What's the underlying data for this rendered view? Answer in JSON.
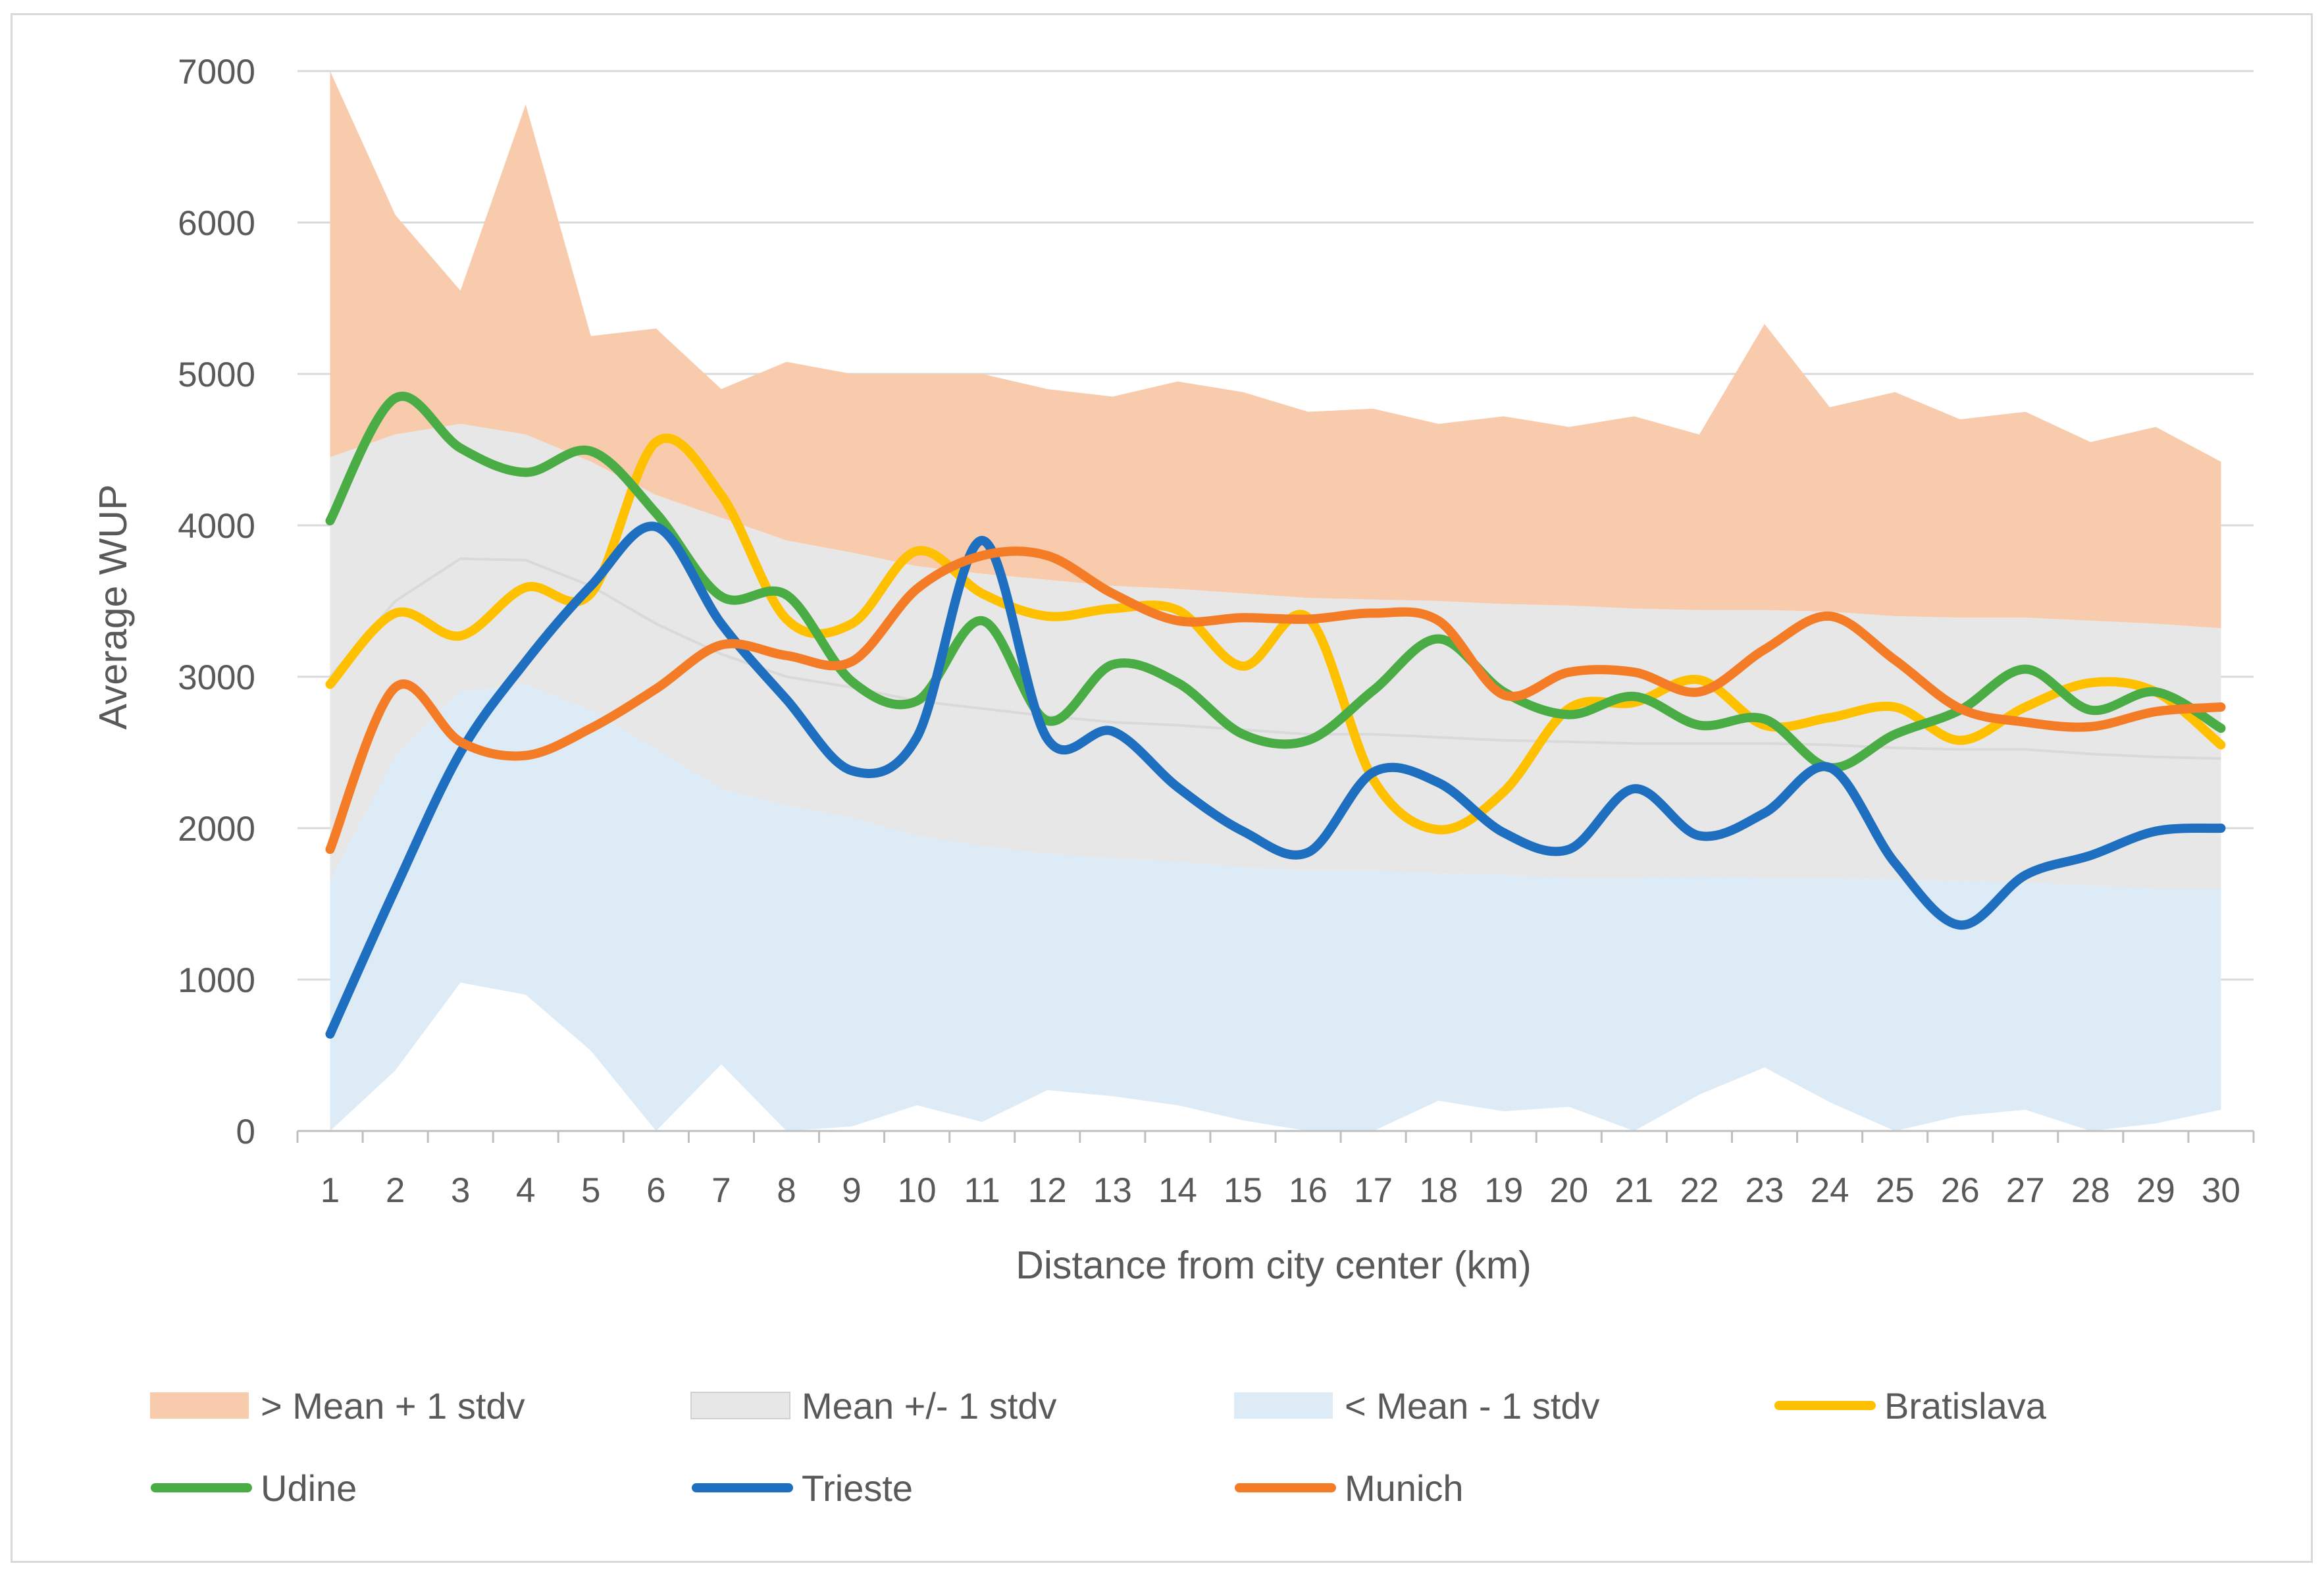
{
  "chart_data": {
    "type": "line",
    "title": "",
    "xlabel": "Distance from city center (km)",
    "ylabel": "Average WUP",
    "ylim": [
      0,
      7000
    ],
    "yticks": [
      0,
      1000,
      2000,
      3000,
      4000,
      5000,
      6000,
      7000
    ],
    "grid": true,
    "legend_position": "bottom",
    "categories": [
      "1",
      "2",
      "3",
      "4",
      "5",
      "6",
      "7",
      "8",
      "9",
      "10",
      "11",
      "12",
      "13",
      "14",
      "15",
      "16",
      "17",
      "18",
      "19",
      "20",
      "21",
      "22",
      "23",
      "24",
      "25",
      "26",
      "27",
      "28",
      "29",
      "30"
    ],
    "bands": [
      {
        "name": "> Mean + 1 stdv",
        "color": "#f8cbad",
        "lower": [
          4450,
          4600,
          4670,
          4600,
          4420,
          4200,
          4050,
          3900,
          3820,
          3730,
          3680,
          3640,
          3600,
          3580,
          3550,
          3520,
          3510,
          3500,
          3480,
          3470,
          3450,
          3440,
          3440,
          3430,
          3400,
          3390,
          3390,
          3370,
          3350,
          3320
        ],
        "upper": [
          7000,
          6050,
          5550,
          6780,
          5250,
          5300,
          4900,
          5080,
          5000,
          5000,
          5000,
          4900,
          4850,
          4950,
          4880,
          4750,
          4770,
          4670,
          4720,
          4650,
          4720,
          4600,
          5330,
          4780,
          4880,
          4700,
          4750,
          4550,
          4650,
          4420
        ]
      },
      {
        "name": "Mean +/- 1 stdv",
        "color": "#e7e7e7",
        "lower": [
          1650,
          2480,
          2900,
          2950,
          2780,
          2520,
          2260,
          2150,
          2070,
          1950,
          1880,
          1830,
          1800,
          1780,
          1740,
          1720,
          1720,
          1700,
          1690,
          1670,
          1670,
          1680,
          1670,
          1670,
          1660,
          1650,
          1640,
          1620,
          1600,
          1600
        ],
        "upper": [
          4450,
          4600,
          4670,
          4600,
          4420,
          4200,
          4050,
          3900,
          3820,
          3730,
          3680,
          3640,
          3600,
          3580,
          3550,
          3520,
          3510,
          3500,
          3480,
          3470,
          3450,
          3440,
          3440,
          3430,
          3400,
          3390,
          3390,
          3370,
          3350,
          3320
        ]
      },
      {
        "name": "< Mean - 1 stdv",
        "color": "#ddebf7",
        "lower": [
          0,
          400,
          980,
          900,
          530,
          0,
          440,
          0,
          30,
          170,
          60,
          270,
          230,
          170,
          70,
          0,
          0,
          200,
          130,
          160,
          0,
          240,
          420,
          190,
          0,
          100,
          140,
          0,
          50,
          140
        ],
        "upper": [
          1650,
          2480,
          2900,
          2950,
          2780,
          2520,
          2260,
          2150,
          2070,
          1950,
          1880,
          1830,
          1800,
          1780,
          1740,
          1720,
          1720,
          1700,
          1690,
          1670,
          1670,
          1680,
          1670,
          1670,
          1660,
          1650,
          1640,
          1620,
          1600,
          1600
        ]
      }
    ],
    "mean_line": {
      "color": "#d9d9d9",
      "values": [
        3000,
        3500,
        3780,
        3770,
        3600,
        3350,
        3150,
        3000,
        2930,
        2840,
        2790,
        2740,
        2700,
        2680,
        2650,
        2620,
        2620,
        2600,
        2580,
        2570,
        2560,
        2560,
        2560,
        2550,
        2530,
        2520,
        2520,
        2490,
        2470,
        2460
      ]
    },
    "series": [
      {
        "name": "Bratislava",
        "color": "#ffc000",
        "values": [
          2950,
          3420,
          3270,
          3590,
          3550,
          4550,
          4200,
          3380,
          3350,
          3830,
          3550,
          3400,
          3450,
          3440,
          3070,
          3390,
          2320,
          1990,
          2240,
          2790,
          2830,
          2980,
          2680,
          2730,
          2800,
          2580,
          2800,
          2960,
          2900,
          2550
        ]
      },
      {
        "name": "Udine",
        "color": "#4aac44",
        "values": [
          4030,
          4840,
          4510,
          4350,
          4490,
          4080,
          3530,
          3540,
          2970,
          2840,
          3370,
          2710,
          3080,
          2960,
          2620,
          2580,
          2910,
          3250,
          2900,
          2750,
          2870,
          2680,
          2720,
          2400,
          2620,
          2780,
          3050,
          2780,
          2900,
          2660
        ]
      },
      {
        "name": "Trieste",
        "color": "#1f6fc1",
        "values": [
          640,
          1600,
          2500,
          3100,
          3600,
          3990,
          3350,
          2850,
          2380,
          2600,
          3900,
          2590,
          2640,
          2270,
          1980,
          1840,
          2370,
          2300,
          1970,
          1860,
          2260,
          1950,
          2100,
          2400,
          1770,
          1360,
          1690,
          1820,
          1980,
          2000
        ]
      },
      {
        "name": "Munich",
        "color": "#f57c27",
        "values": [
          1860,
          2930,
          2570,
          2480,
          2660,
          2920,
          3210,
          3140,
          3100,
          3580,
          3800,
          3800,
          3550,
          3370,
          3390,
          3380,
          3420,
          3370,
          2880,
          3030,
          3030,
          2900,
          3180,
          3400,
          3110,
          2790,
          2700,
          2670,
          2770,
          2800
        ]
      }
    ]
  }
}
